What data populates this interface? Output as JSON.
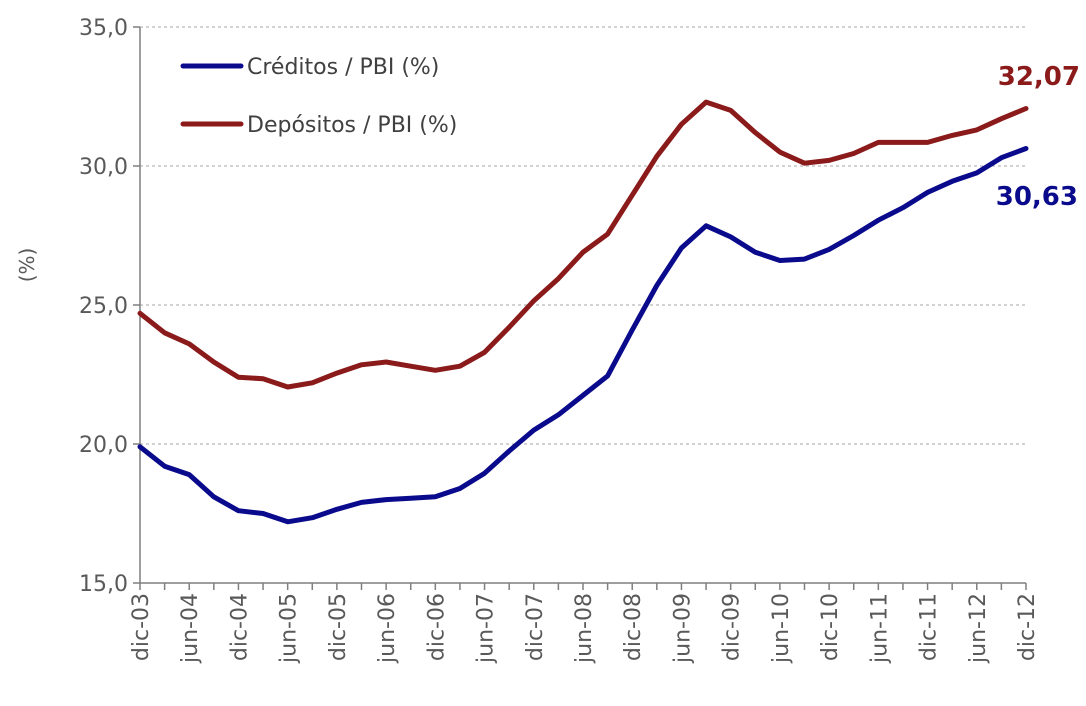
{
  "chart_data": {
    "type": "line",
    "title": "",
    "xlabel": "",
    "ylabel": "(%)",
    "ylim": [
      15,
      35
    ],
    "yticks": [
      "15,0",
      "20,0",
      "25,0",
      "30,0",
      "35,0"
    ],
    "ytick_values": [
      15,
      20,
      25,
      30,
      35
    ],
    "grid": "horizontal dashed",
    "legend_position": "top-left",
    "x_tick_labels": [
      "dic-03",
      "jun-04",
      "dic-04",
      "jun-05",
      "dic-05",
      "jun-06",
      "dic-06",
      "jun-07",
      "dic-07",
      "jun-08",
      "dic-08",
      "jun-09",
      "dic-09",
      "jun-10",
      "dic-10",
      "jun-11",
      "dic-11",
      "jun-12",
      "dic-12"
    ],
    "x": [
      "dic-03",
      "mar-04",
      "jun-04",
      "sep-04",
      "dic-04",
      "mar-05",
      "jun-05",
      "sep-05",
      "dic-05",
      "mar-06",
      "jun-06",
      "sep-06",
      "dic-06",
      "mar-07",
      "jun-07",
      "sep-07",
      "dic-07",
      "mar-08",
      "jun-08",
      "sep-08",
      "dic-08",
      "mar-09",
      "jun-09",
      "sep-09",
      "dic-09",
      "mar-10",
      "jun-10",
      "sep-10",
      "dic-10",
      "mar-11",
      "jun-11",
      "sep-11",
      "dic-11",
      "mar-12",
      "jun-12",
      "sep-12",
      "dic-12"
    ],
    "series": [
      {
        "name": "Créditos / PBI (%)",
        "color": "#0a0a8c",
        "values": [
          19.9,
          19.2,
          18.9,
          18.1,
          17.6,
          17.5,
          17.2,
          17.35,
          17.65,
          17.9,
          18.0,
          18.05,
          18.1,
          18.4,
          18.95,
          19.75,
          20.5,
          21.05,
          21.75,
          22.45,
          24.1,
          25.7,
          27.05,
          27.85,
          27.45,
          26.9,
          26.6,
          26.65,
          27.0,
          27.5,
          28.05,
          28.5,
          29.05,
          29.45,
          29.75,
          30.3,
          30.63
        ],
        "end_label": "30,63"
      },
      {
        "name": "Depósitos / PBI (%)",
        "color": "#8b1a1a",
        "values": [
          24.7,
          24.0,
          23.6,
          22.95,
          22.4,
          22.35,
          22.05,
          22.2,
          22.55,
          22.85,
          22.95,
          22.8,
          22.65,
          22.8,
          23.3,
          24.2,
          25.15,
          25.95,
          26.9,
          27.55,
          28.95,
          30.35,
          31.5,
          32.3,
          32.0,
          31.2,
          30.5,
          30.1,
          30.2,
          30.45,
          30.85,
          30.85,
          30.85,
          31.1,
          31.3,
          31.7,
          32.07
        ],
        "end_label": "32,07"
      }
    ]
  }
}
